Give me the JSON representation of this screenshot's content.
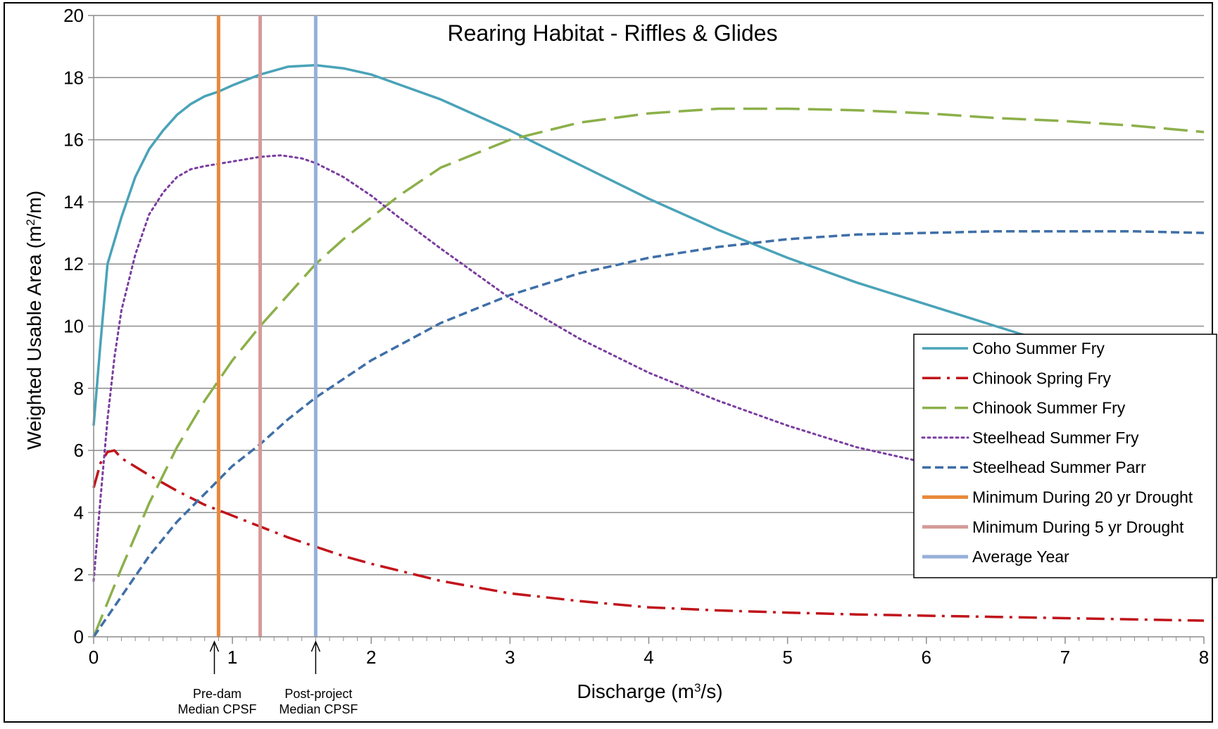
{
  "chart_data": {
    "type": "line",
    "title": "Rearing Habitat - Riffles & Glides",
    "xlabel_pre": "Discharge (m",
    "xlabel_sup": "3",
    "xlabel_post": "/s)",
    "ylabel_pre": "Weighted Usable Area (m",
    "ylabel_sup": "2",
    "ylabel_post": "/m)",
    "xlim": [
      0,
      8
    ],
    "ylim": [
      0,
      20
    ],
    "xticks": [
      "0",
      "1",
      "2",
      "3",
      "4",
      "5",
      "6",
      "7",
      "8"
    ],
    "yticks": [
      "0",
      "2",
      "4",
      "6",
      "8",
      "10",
      "12",
      "14",
      "16",
      "18",
      "20"
    ],
    "grid": "horizontal",
    "legend_position": "right",
    "series": [
      {
        "name": "Coho Summer Fry",
        "color": "#4aa3b8",
        "style": "solid",
        "points": [
          [
            0,
            6.8
          ],
          [
            0.05,
            9.5
          ],
          [
            0.1,
            12
          ],
          [
            0.2,
            13.5
          ],
          [
            0.3,
            14.8
          ],
          [
            0.4,
            15.7
          ],
          [
            0.5,
            16.3
          ],
          [
            0.6,
            16.8
          ],
          [
            0.7,
            17.15
          ],
          [
            0.8,
            17.4
          ],
          [
            0.9,
            17.55
          ],
          [
            1.0,
            17.75
          ],
          [
            1.2,
            18.1
          ],
          [
            1.4,
            18.35
          ],
          [
            1.6,
            18.4
          ],
          [
            1.8,
            18.3
          ],
          [
            2.0,
            18.1
          ],
          [
            2.5,
            17.3
          ],
          [
            3.0,
            16.3
          ],
          [
            3.5,
            15.2
          ],
          [
            4.0,
            14.1
          ],
          [
            4.5,
            13.1
          ],
          [
            5.0,
            12.2
          ],
          [
            5.5,
            11.4
          ],
          [
            6.0,
            10.7
          ],
          [
            6.5,
            10.0
          ],
          [
            6.75,
            9.65
          ]
        ]
      },
      {
        "name": "Chinook Spring Fry",
        "color": "#c0141b",
        "style": "dashdot",
        "points": [
          [
            0,
            4.8
          ],
          [
            0.05,
            5.6
          ],
          [
            0.1,
            5.95
          ],
          [
            0.15,
            6.0
          ],
          [
            0.2,
            5.75
          ],
          [
            0.4,
            5.2
          ],
          [
            0.6,
            4.7
          ],
          [
            0.8,
            4.25
          ],
          [
            1.0,
            3.9
          ],
          [
            1.2,
            3.55
          ],
          [
            1.4,
            3.2
          ],
          [
            1.6,
            2.9
          ],
          [
            1.8,
            2.6
          ],
          [
            2.0,
            2.35
          ],
          [
            2.5,
            1.8
          ],
          [
            3.0,
            1.4
          ],
          [
            3.5,
            1.15
          ],
          [
            4.0,
            0.95
          ],
          [
            4.5,
            0.85
          ],
          [
            5.0,
            0.78
          ],
          [
            5.5,
            0.72
          ],
          [
            6.0,
            0.68
          ],
          [
            6.5,
            0.64
          ],
          [
            7.0,
            0.6
          ],
          [
            7.5,
            0.56
          ],
          [
            8.0,
            0.52
          ]
        ]
      },
      {
        "name": "Chinook Summer Fry",
        "color": "#8cb04a",
        "style": "longdash",
        "points": [
          [
            0,
            0
          ],
          [
            0.2,
            2.2
          ],
          [
            0.4,
            4.3
          ],
          [
            0.6,
            6.1
          ],
          [
            0.8,
            7.6
          ],
          [
            1.0,
            8.9
          ],
          [
            1.2,
            10
          ],
          [
            1.4,
            11
          ],
          [
            1.6,
            12
          ],
          [
            1.8,
            12.8
          ],
          [
            2.0,
            13.5
          ],
          [
            2.2,
            14.2
          ],
          [
            2.5,
            15.1
          ],
          [
            3.0,
            16.0
          ],
          [
            3.5,
            16.55
          ],
          [
            4.0,
            16.85
          ],
          [
            4.5,
            17.0
          ],
          [
            5.0,
            17.0
          ],
          [
            5.5,
            16.95
          ],
          [
            6.0,
            16.85
          ],
          [
            6.5,
            16.7
          ],
          [
            7.0,
            16.6
          ],
          [
            7.5,
            16.45
          ],
          [
            8.0,
            16.25
          ]
        ]
      },
      {
        "name": "Steelhead Summer Fry",
        "color": "#7a3da0",
        "style": "dotted",
        "points": [
          [
            0,
            1.8
          ],
          [
            0.05,
            4.5
          ],
          [
            0.1,
            7
          ],
          [
            0.15,
            9
          ],
          [
            0.2,
            10.5
          ],
          [
            0.3,
            12.3
          ],
          [
            0.4,
            13.6
          ],
          [
            0.5,
            14.3
          ],
          [
            0.6,
            14.8
          ],
          [
            0.7,
            15.05
          ],
          [
            0.8,
            15.15
          ],
          [
            1.0,
            15.3
          ],
          [
            1.2,
            15.45
          ],
          [
            1.35,
            15.5
          ],
          [
            1.5,
            15.4
          ],
          [
            1.6,
            15.25
          ],
          [
            1.8,
            14.8
          ],
          [
            2.0,
            14.2
          ],
          [
            2.2,
            13.5
          ],
          [
            2.5,
            12.5
          ],
          [
            3.0,
            10.9
          ],
          [
            3.5,
            9.6
          ],
          [
            4.0,
            8.5
          ],
          [
            4.5,
            7.6
          ],
          [
            5.0,
            6.8
          ],
          [
            5.5,
            6.1
          ],
          [
            6.0,
            5.6
          ],
          [
            6.25,
            5.4
          ]
        ]
      },
      {
        "name": "Steelhead Summer Parr",
        "color": "#3f6fa8",
        "style": "dashed",
        "points": [
          [
            0,
            0
          ],
          [
            0.2,
            1.3
          ],
          [
            0.4,
            2.6
          ],
          [
            0.6,
            3.7
          ],
          [
            0.8,
            4.6
          ],
          [
            1.0,
            5.5
          ],
          [
            1.2,
            6.2
          ],
          [
            1.4,
            7.0
          ],
          [
            1.6,
            7.7
          ],
          [
            1.8,
            8.3
          ],
          [
            2.0,
            8.9
          ],
          [
            2.5,
            10.1
          ],
          [
            3.0,
            11.0
          ],
          [
            3.5,
            11.7
          ],
          [
            4.0,
            12.2
          ],
          [
            4.5,
            12.55
          ],
          [
            5.0,
            12.8
          ],
          [
            5.5,
            12.95
          ],
          [
            6.0,
            13.0
          ],
          [
            6.5,
            13.05
          ],
          [
            7.0,
            13.05
          ],
          [
            7.5,
            13.05
          ],
          [
            8.0,
            13.0
          ]
        ]
      }
    ],
    "vlines": [
      {
        "name": "Minimum During 20 yr Drought",
        "color": "#e8893a",
        "x": 0.9
      },
      {
        "name": "Minimum During 5 yr Drought",
        "color": "#d59a98",
        "x": 1.2
      },
      {
        "name": "Average Year",
        "color": "#96b0d8",
        "x": 1.6
      }
    ],
    "annotations": [
      {
        "x": 0.87,
        "line1": "Pre-dam",
        "line2": "Median CPSF"
      },
      {
        "x": 1.6,
        "line1": "Post-project",
        "line2": "Median CPSF"
      }
    ]
  }
}
